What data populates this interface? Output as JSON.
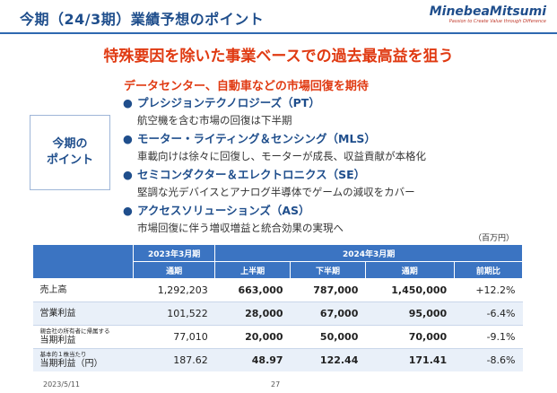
{
  "header": {
    "title": "今期（24/3期）業績予想のポイント",
    "logo": "MinebeaMitsumi",
    "logo_tagline": "Passion to Create Value through Difference"
  },
  "headline": "特殊要因を除いた事業ベースでの過去最高益を狙う",
  "subhead": "データセンター、自動車などの市場回復を期待",
  "point_label": "今期の\nポイント",
  "bullets": [
    {
      "title": "プレシジョンテクノロジーズ（PT）",
      "desc": "航空機を含む市場の回復は下半期"
    },
    {
      "title": "モーター・ライティング＆センシング（MLS）",
      "desc": "車載向けは徐々に回復し、モーターが成長、収益貢献が本格化"
    },
    {
      "title": "セミコンダクター＆エレクトロニクス（SE）",
      "desc": "堅調な光デバイスとアナログ半導体でゲームの減収をカバー"
    },
    {
      "title": "アクセスソリューションズ（AS）",
      "desc": "市場回復に伴う増収増益と統合効果の実現へ"
    }
  ],
  "unit": "（百万円）",
  "table": {
    "header_group_1": "2023年3月期",
    "header_group_2": "2024年3月期",
    "sub_headers": [
      "通期",
      "上半期",
      "下半期",
      "通期",
      "前期比"
    ],
    "rows": [
      {
        "label_small": "",
        "label": "売上高",
        "values": [
          "1,292,203",
          "663,000",
          "787,000",
          "1,450,000",
          "+12.2%"
        ]
      },
      {
        "label_small": "",
        "label": "営業利益",
        "values": [
          "101,522",
          "28,000",
          "67,000",
          "95,000",
          "-6.4%"
        ]
      },
      {
        "label_small": "親会社の所有者に帰属する",
        "label": "当期利益",
        "values": [
          "77,010",
          "20,000",
          "50,000",
          "70,000",
          "-9.1%"
        ]
      },
      {
        "label_small": "基本的１株当たり",
        "label": "当期利益（円）",
        "values": [
          "187.62",
          "48.97",
          "122.44",
          "171.41",
          "-8.6%"
        ]
      }
    ]
  },
  "footer": {
    "date": "2023/5/11",
    "page": "27"
  }
}
